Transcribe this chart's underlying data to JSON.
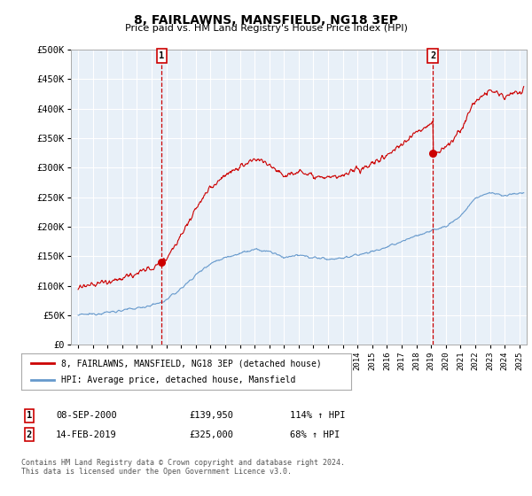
{
  "title": "8, FAIRLAWNS, MANSFIELD, NG18 3EP",
  "subtitle": "Price paid vs. HM Land Registry's House Price Index (HPI)",
  "ylabel_ticks": [
    "£0",
    "£50K",
    "£100K",
    "£150K",
    "£200K",
    "£250K",
    "£300K",
    "£350K",
    "£400K",
    "£450K",
    "£500K"
  ],
  "ylim": [
    0,
    500000
  ],
  "xlim_start": 1994.5,
  "xlim_end": 2025.5,
  "transaction1": {
    "date_x": 2000.69,
    "price": 139950,
    "label": "1",
    "date_str": "08-SEP-2000",
    "hpi_pct": "114% ↑ HPI"
  },
  "transaction2": {
    "date_x": 2019.12,
    "price": 325000,
    "label": "2",
    "date_str": "14-FEB-2019",
    "hpi_pct": "68% ↑ HPI"
  },
  "legend_line1": "8, FAIRLAWNS, MANSFIELD, NG18 3EP (detached house)",
  "legend_line2": "HPI: Average price, detached house, Mansfield",
  "table_row1": [
    "1",
    "08-SEP-2000",
    "£139,950",
    "114% ↑ HPI"
  ],
  "table_row2": [
    "2",
    "14-FEB-2019",
    "£325,000",
    "68% ↑ HPI"
  ],
  "footer": "Contains HM Land Registry data © Crown copyright and database right 2024.\nThis data is licensed under the Open Government Licence v3.0.",
  "red_color": "#cc0000",
  "blue_color": "#6699cc",
  "blue_fill": "#ddeeff",
  "grid_color": "#cccccc",
  "background_color": "#ffffff"
}
